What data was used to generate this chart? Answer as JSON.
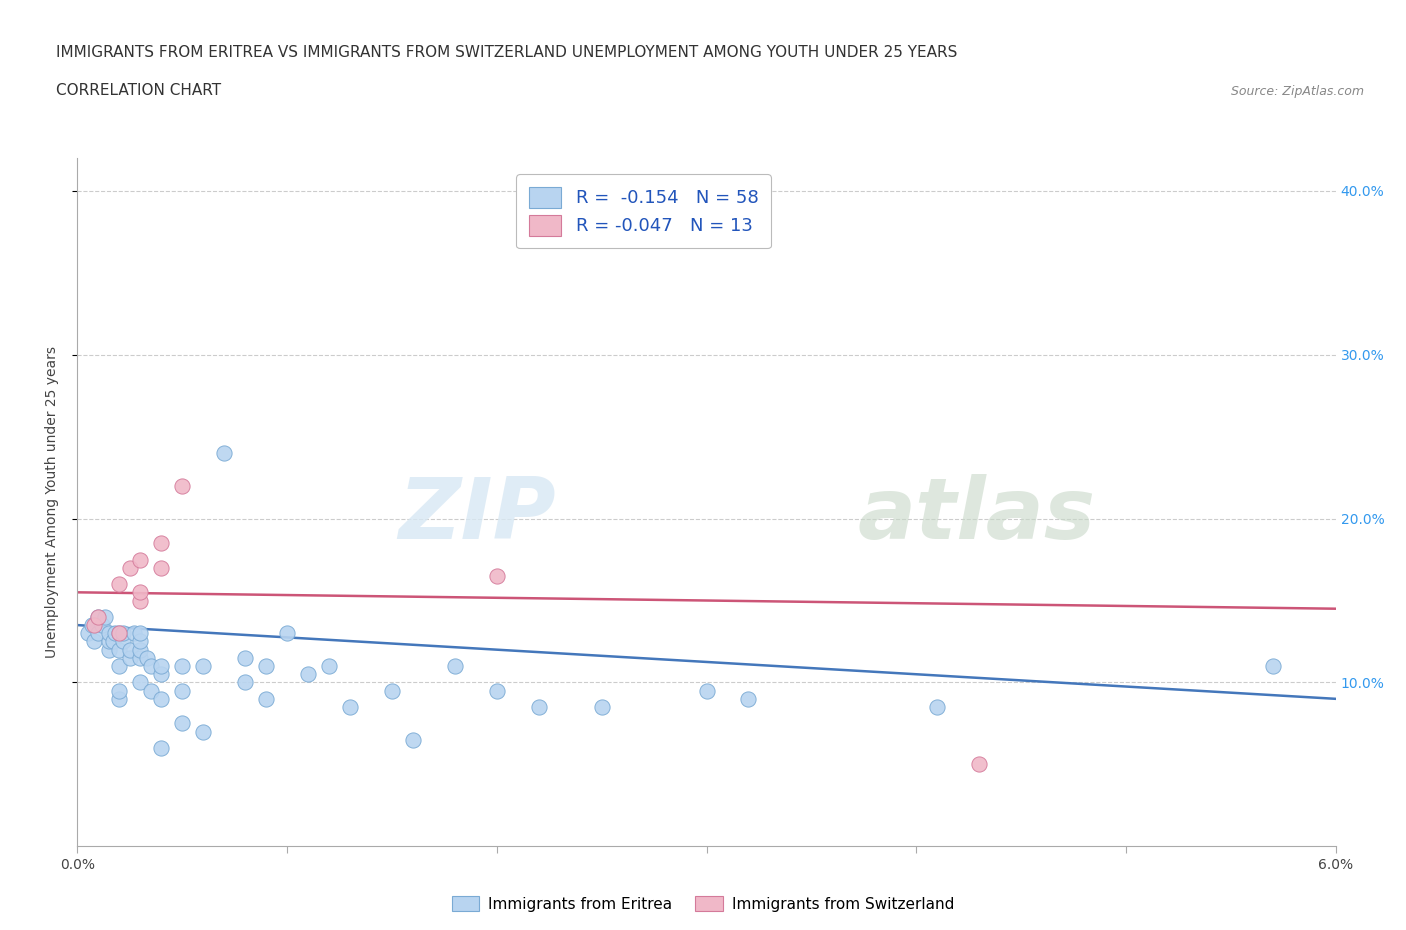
{
  "title_line1": "IMMIGRANTS FROM ERITREA VS IMMIGRANTS FROM SWITZERLAND UNEMPLOYMENT AMONG YOUTH UNDER 25 YEARS",
  "title_line2": "CORRELATION CHART",
  "source_text": "Source: ZipAtlas.com",
  "ylabel": "Unemployment Among Youth under 25 years",
  "xlim": [
    0.0,
    0.06
  ],
  "ylim": [
    0.0,
    0.42
  ],
  "xticks": [
    0.0,
    0.01,
    0.02,
    0.03,
    0.04,
    0.05,
    0.06
  ],
  "xticklabels": [
    "0.0%",
    "",
    "",
    "",
    "",
    "",
    "6.0%"
  ],
  "ytick_positions": [
    0.1,
    0.2,
    0.3,
    0.4
  ],
  "yticklabels_right": [
    "10.0%",
    "20.0%",
    "30.0%",
    "40.0%"
  ],
  "grid_color": "#cccccc",
  "watermark_zip": "ZIP",
  "watermark_atlas": "atlas",
  "legend_r1": "R =  -0.154   N = 58",
  "legend_r2": "R = -0.047   N = 13",
  "color_eritrea": "#b8d4f0",
  "color_switzerland": "#f0b8c8",
  "edge_eritrea": "#7aaad4",
  "edge_switzerland": "#d47a9a",
  "line_eritrea": "#4477bb",
  "line_switzerland": "#cc5577",
  "eritrea_x": [
    0.0005,
    0.0007,
    0.0008,
    0.001,
    0.001,
    0.0012,
    0.0013,
    0.0015,
    0.0015,
    0.0015,
    0.0017,
    0.0018,
    0.002,
    0.002,
    0.002,
    0.002,
    0.002,
    0.0022,
    0.0022,
    0.0025,
    0.0025,
    0.0027,
    0.003,
    0.003,
    0.003,
    0.003,
    0.003,
    0.0033,
    0.0035,
    0.0035,
    0.004,
    0.004,
    0.004,
    0.004,
    0.005,
    0.005,
    0.005,
    0.006,
    0.006,
    0.007,
    0.008,
    0.008,
    0.009,
    0.009,
    0.01,
    0.011,
    0.012,
    0.013,
    0.015,
    0.016,
    0.018,
    0.02,
    0.022,
    0.025,
    0.03,
    0.032,
    0.041,
    0.057
  ],
  "eritrea_y": [
    0.13,
    0.135,
    0.125,
    0.14,
    0.13,
    0.135,
    0.14,
    0.12,
    0.125,
    0.13,
    0.125,
    0.13,
    0.09,
    0.095,
    0.11,
    0.12,
    0.13,
    0.125,
    0.13,
    0.115,
    0.12,
    0.13,
    0.1,
    0.115,
    0.12,
    0.125,
    0.13,
    0.115,
    0.095,
    0.11,
    0.06,
    0.09,
    0.105,
    0.11,
    0.075,
    0.095,
    0.11,
    0.07,
    0.11,
    0.24,
    0.1,
    0.115,
    0.09,
    0.11,
    0.13,
    0.105,
    0.11,
    0.085,
    0.095,
    0.065,
    0.11,
    0.095,
    0.085,
    0.085,
    0.095,
    0.09,
    0.085,
    0.11
  ],
  "switzerland_x": [
    0.0008,
    0.001,
    0.002,
    0.002,
    0.0025,
    0.003,
    0.003,
    0.003,
    0.004,
    0.004,
    0.005,
    0.02,
    0.043
  ],
  "switzerland_y": [
    0.135,
    0.14,
    0.13,
    0.16,
    0.17,
    0.15,
    0.155,
    0.175,
    0.17,
    0.185,
    0.22,
    0.165,
    0.05
  ],
  "eritrea_trend_x": [
    0.0,
    0.06
  ],
  "eritrea_trend_y": [
    0.135,
    0.09
  ],
  "switzerland_trend_x": [
    0.0,
    0.06
  ],
  "switzerland_trend_y": [
    0.155,
    0.145
  ],
  "title_fontsize": 11,
  "subtitle_fontsize": 11,
  "axis_label_fontsize": 10,
  "tick_fontsize": 10,
  "source_fontsize": 9,
  "bg_color": "#ffffff"
}
